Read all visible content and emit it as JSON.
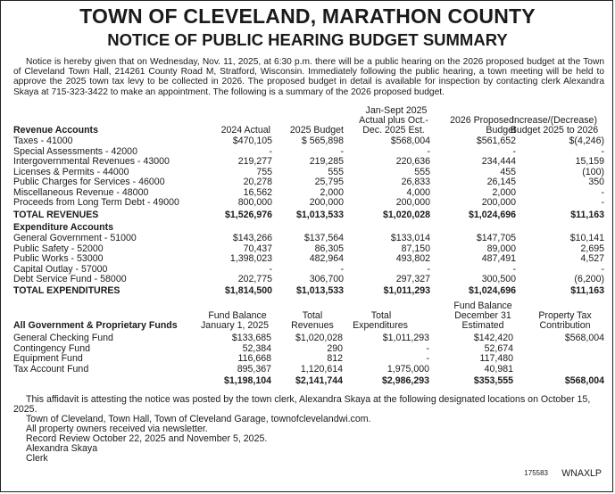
{
  "title_line1": "TOWN OF CLEVELAND, MARATHON COUNTY",
  "title_line2": "NOTICE OF PUBLIC HEARING BUDGET SUMMARY",
  "intro": "Notice is hereby given that on Wednesday, Nov. 11, 2025, at 6:30 p.m. there will be a public hearing on the 2026 proposed budget at the Town of Cleveland Town Hall, 214261 County Road M, Stratford, Wisconsin. Immediately following the public hearing, a town meeting will be held to approve the 2025 town tax levy to be collected in 2026. The proposed budget in detail is available for inspection by contacting clerk Alexandra Skaya at 715-323-3422 to make an appointment. The following is a summary of the 2026 proposed budget.",
  "budget_headers": {
    "col_label": "Revenue Accounts",
    "c2024": "2024 Actual",
    "c2025": "2025 Budget",
    "jan_line1": "Jan-Sept 2025",
    "jan_line2": "Actual plus Oct.-",
    "jan_line3": "Dec. 2025 Est.",
    "prop_line1": "2026 Proposed",
    "prop_line2": "Budget",
    "inc_line1": "Increase/(Decrease)",
    "inc_line2": "Budget 2025 to 2026"
  },
  "revenue_rows": [
    {
      "label": "Taxes - 41000",
      "a2024": "$470,105",
      "b2025": "$ 565,898",
      "est": "$568,004",
      "prop": "$561,652",
      "inc": "$(4,246)"
    },
    {
      "label": "Special Assessments - 42000",
      "a2024": "-",
      "b2025": "-",
      "est": "-",
      "prop": "-",
      "inc": "-"
    },
    {
      "label": "Intergovernmental Revenues - 43000",
      "a2024": "219,277",
      "b2025": "219,285",
      "est": "220,636",
      "prop": "234,444",
      "inc": "15,159"
    },
    {
      "label": "Licenses & Permits - 44000",
      "a2024": "755",
      "b2025": "555",
      "est": "555",
      "prop": "455",
      "inc": "(100)"
    },
    {
      "label": "Public Charges for Services - 46000",
      "a2024": "20,278",
      "b2025": "25,795",
      "est": "26,833",
      "prop": "26,145",
      "inc": "350"
    },
    {
      "label": "Miscellaneous Revenue - 48000",
      "a2024": "16,562",
      "b2025": "2,000",
      "est": "4,000",
      "prop": "2,000",
      "inc": "-"
    },
    {
      "label": "Proceeds from Long Term Debt - 49000",
      "a2024": "800,000",
      "b2025": "200,000",
      "est": "200,000",
      "prop": "200,000",
      "inc": "-"
    }
  ],
  "revenue_total": {
    "label": "TOTAL REVENUES",
    "a2024": "$1,526,976",
    "b2025": "$1,013,533",
    "est": "$1,020,028",
    "prop": "$1,024,696",
    "inc": "$11,163"
  },
  "expenditure_heading": "Expenditure Accounts",
  "expenditure_rows": [
    {
      "label": "General Government - 51000",
      "a2024": "$143,266",
      "b2025": "$137,564",
      "est": "$133,014",
      "prop": "$147,705",
      "inc": "$10,141"
    },
    {
      "label": "Public Safety - 52000",
      "a2024": "70,437",
      "b2025": "86,305",
      "est": "87,150",
      "prop": "89,000",
      "inc": "2,695"
    },
    {
      "label": "Public Works - 53000",
      "a2024": "1,398,023",
      "b2025": "482,964",
      "est": "493,802",
      "prop": "487,491",
      "inc": "4,527"
    },
    {
      "label": "Capital Outlay - 57000",
      "a2024": "-",
      "b2025": "-",
      "est": "-",
      "prop": "-",
      "inc": "-"
    },
    {
      "label": "Debt Service Fund - 58000",
      "a2024": "202,775",
      "b2025": "306,700",
      "est": "297,327",
      "prop": "300,500",
      "inc": "(6,200)"
    }
  ],
  "expenditure_total": {
    "label": "TOTAL EXPENDITURES",
    "a2024": "$1,814,500",
    "b2025": "$1,013,533",
    "est": "$1,011,293",
    "prop": "$1,024,696",
    "inc": "$11,163"
  },
  "fund_headers": {
    "col_label": "All Government & Proprietary Funds",
    "fb_line1": "Fund Balance",
    "fb_line2": "January 1, 2025",
    "tr_line1": "Total",
    "tr_line2": "Revenues",
    "te_line1": "Total",
    "te_line2": "Expenditures",
    "fbd_line1": "Fund Balance",
    "fbd_line2": "December 31",
    "fbd_line3": "Estimated",
    "pt_line1": "Property Tax",
    "pt_line2": "Contribution"
  },
  "fund_rows": [
    {
      "label": "General Checking Fund",
      "fb": "$133,685",
      "rev": "$1,020,028",
      "exp": "$1,011,293",
      "dec": "$142,420",
      "tax": "$568,004"
    },
    {
      "label": "Contingency Fund",
      "fb": "52,384",
      "rev": "290",
      "exp": "-",
      "dec": "52,674",
      "tax": ""
    },
    {
      "label": "Equipment Fund",
      "fb": "116,668",
      "rev": "812",
      "exp": "-",
      "dec": "117,480",
      "tax": ""
    },
    {
      "label": "Tax Account Fund",
      "fb": "895,367",
      "rev": "1,120,614",
      "exp": "1,975,000",
      "dec": "40,981",
      "tax": ""
    }
  ],
  "fund_total": {
    "fb": "$1,198,104",
    "rev": "$2,141,744",
    "exp": "$2,986,293",
    "dec": "$353,555",
    "tax": "$568,004"
  },
  "footer": {
    "affidavit": "This affidavit is attesting the notice was posted by the town clerk, Alexandra Skaya at the following designated locations on October 15, 2025.",
    "line1": "Town of Cleveland, Town Hall, Town of Cleveland Garage, townofclevelandwi.com.",
    "line2": "All property owners received via newsletter.",
    "line3": "Record Review October 22, 2025 and November 5, 2025.",
    "line4": "Alexandra Skaya",
    "line5": "Clerk"
  },
  "ad_number": "175583",
  "ad_code": "WNAXLP"
}
